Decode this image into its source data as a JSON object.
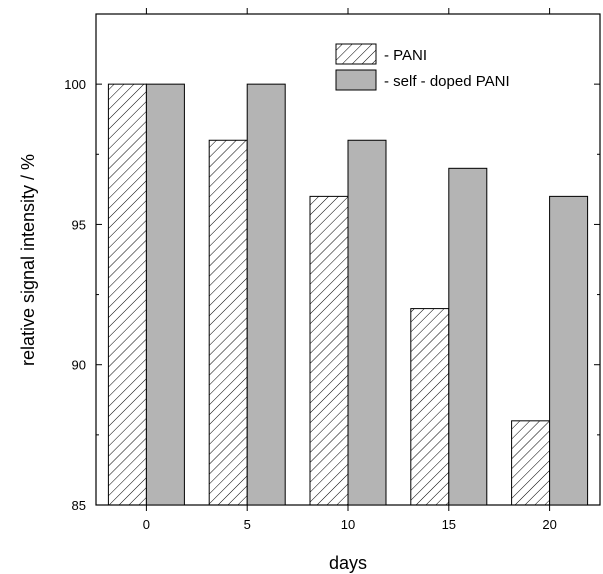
{
  "chart_data": {
    "type": "bar",
    "categories": [
      "0",
      "5",
      "10",
      "15",
      "20"
    ],
    "series": [
      {
        "name": "PANI",
        "values": [
          100,
          98,
          96,
          92,
          88
        ],
        "fill": "hatch"
      },
      {
        "name": "self - doped PANI",
        "values": [
          100,
          100,
          98,
          97,
          96
        ],
        "fill": "#b4b4b4"
      }
    ],
    "xlabel": "days",
    "ylabel": "relative signal intensity / %",
    "ylim": [
      85,
      102.5
    ],
    "yticks": [
      85,
      90,
      95,
      100
    ],
    "grid": false,
    "legend": {
      "position": "top-right",
      "entries": [
        "-  PANI",
        "-  self - doped PANI"
      ]
    }
  }
}
